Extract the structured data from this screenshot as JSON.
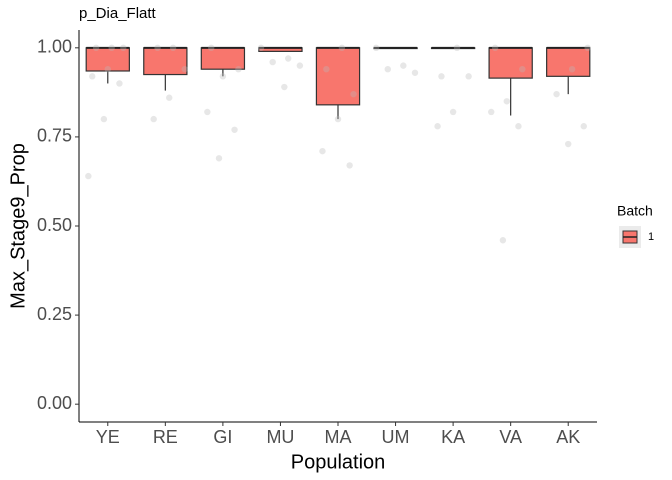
{
  "chart_data": {
    "type": "box",
    "title": "p_Dia_Flatt",
    "x_label": "Population",
    "y_label": "Max_Stage9_Prop",
    "legend_title": "Batch",
    "categories": [
      "YE",
      "RE",
      "GI",
      "MU",
      "MA",
      "UM",
      "KA",
      "VA",
      "AK"
    ],
    "series": [
      {
        "name": "1",
        "color": "#f8766d",
        "whisker_low": [
          0.9,
          0.88,
          0.92,
          0.99,
          0.8,
          0.998,
          0.998,
          0.81,
          0.87
        ],
        "q1": [
          0.935,
          0.925,
          0.94,
          0.99,
          0.84,
          0.998,
          0.998,
          0.915,
          0.92
        ],
        "median": [
          1,
          1,
          1,
          1,
          1,
          1,
          1,
          1,
          1
        ],
        "q3": [
          1,
          1,
          1,
          1,
          1,
          1,
          1,
          1,
          1
        ],
        "whisker_high": [
          1,
          1,
          1,
          1,
          1,
          1,
          1,
          1,
          1
        ],
        "points": [
          [
            0.64,
            0.8,
            0.9,
            0.92,
            0.94,
            1,
            1,
            1
          ],
          [
            0.8,
            0.86,
            0.94,
            1,
            1
          ],
          [
            0.69,
            0.77,
            0.82,
            0.92,
            0.94,
            1
          ],
          [
            0.89,
            0.95,
            0.96,
            0.97,
            1
          ],
          [
            0.67,
            0.71,
            0.8,
            0.87,
            0.94,
            1
          ],
          [
            0.93,
            0.94,
            0.95,
            1
          ],
          [
            0.78,
            0.82,
            0.92,
            0.92,
            1
          ],
          [
            0.46,
            0.78,
            0.82,
            0.85,
            0.94,
            1
          ],
          [
            0.73,
            0.78,
            0.87,
            0.94,
            1
          ]
        ]
      }
    ],
    "ylim": [
      -0.05,
      1.05
    ],
    "yticks": [
      {
        "value": 0,
        "label": "0.00"
      },
      {
        "value": 0.25,
        "label": "0.25"
      },
      {
        "value": 0.5,
        "label": "0.50"
      },
      {
        "value": 0.75,
        "label": "0.75"
      },
      {
        "value": 1,
        "label": "1.00"
      }
    ],
    "grid": false,
    "legend_position": "right"
  }
}
